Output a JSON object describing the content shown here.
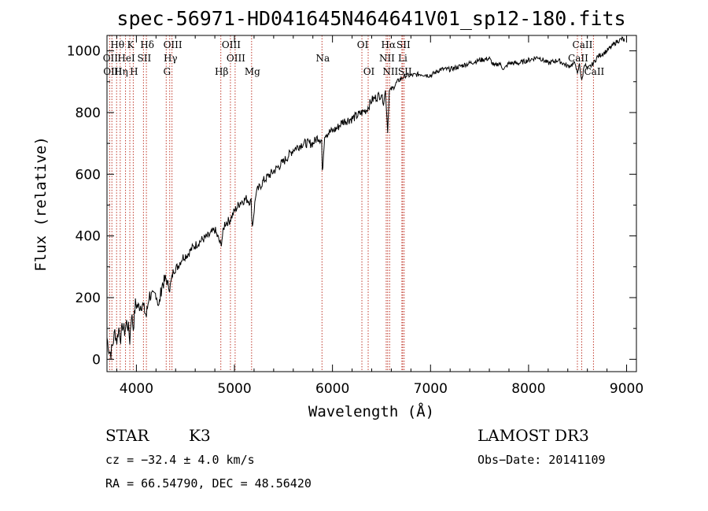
{
  "chart_data": {
    "type": "line",
    "title": "spec-56971-HD041645N464641V01_sp12-180.fits",
    "xlabel": "Wavelength (Å)",
    "ylabel": "Flux (relative)",
    "xlim": [
      3700,
      9100
    ],
    "ylim": [
      -40,
      1050
    ],
    "x_ticks": [
      4000,
      5000,
      6000,
      7000,
      8000,
      9000
    ],
    "y_ticks": [
      0,
      200,
      400,
      600,
      800,
      1000
    ],
    "series": [
      {
        "name": "flux",
        "x": [
          3700,
          3720,
          3740,
          3760,
          3780,
          3800,
          3820,
          3840,
          3860,
          3880,
          3900,
          3920,
          3933,
          3950,
          3968,
          3990,
          4020,
          4060,
          4102,
          4130,
          4170,
          4200,
          4230,
          4260,
          4300,
          4340,
          4380,
          4420,
          4470,
          4520,
          4570,
          4620,
          4680,
          4740,
          4800,
          4861,
          4900,
          4950,
          5000,
          5060,
          5120,
          5170,
          5183,
          5220,
          5300,
          5400,
          5500,
          5600,
          5700,
          5800,
          5850,
          5890,
          5896,
          5920,
          6000,
          6050,
          6100,
          6200,
          6300,
          6350,
          6400,
          6450,
          6500,
          6520,
          6540,
          6563,
          6580,
          6620,
          6660,
          6700,
          6750,
          6800,
          6900,
          7000,
          7100,
          7200,
          7300,
          7400,
          7500,
          7600,
          7650,
          7700,
          7750,
          7800,
          7900,
          8000,
          8100,
          8200,
          8300,
          8400,
          8480,
          8498,
          8520,
          8542,
          8570,
          8600,
          8662,
          8700,
          8800,
          8900,
          8960,
          8980
        ],
        "values": [
          70,
          30,
          20,
          50,
          90,
          60,
          100,
          70,
          110,
          90,
          120,
          100,
          60,
          150,
          100,
          180,
          170,
          180,
          140,
          210,
          200,
          215,
          170,
          240,
          260,
          230,
          290,
          300,
          330,
          340,
          360,
          375,
          390,
          400,
          420,
          370,
          440,
          450,
          480,
          510,
          520,
          510,
          430,
          540,
          580,
          610,
          640,
          680,
          700,
          700,
          720,
          710,
          600,
          730,
          740,
          750,
          770,
          780,
          800,
          810,
          840,
          850,
          860,
          830,
          870,
          740,
          870,
          880,
          900,
          910,
          920,
          920,
          925,
          920,
          940,
          940,
          950,
          960,
          970,
          975,
          950,
          960,
          940,
          960,
          960,
          970,
          980,
          960,
          970,
          950,
          960,
          920,
          960,
          900,
          960,
          940,
          960,
          980,
          1000,
          1030,
          1040,
          1030
        ]
      }
    ],
    "spectral_lines": [
      {
        "label": "Hθ",
        "wavelength": 3798,
        "row": 1
      },
      {
        "label": "OII",
        "wavelength": 3727,
        "row": 2
      },
      {
        "label": "OIII",
        "wavelength": 3750,
        "row": 3
      },
      {
        "label": "K",
        "wavelength": 3933,
        "row": 1
      },
      {
        "label": "Hη",
        "wavelength": 3835,
        "row": 3
      },
      {
        "label": "HeI",
        "wavelength": 3889,
        "row": 2
      },
      {
        "label": "H",
        "wavelength": 3968,
        "row": 3
      },
      {
        "label": "Hδ",
        "wavelength": 4102,
        "row": 1
      },
      {
        "label": "SII",
        "wavelength": 4072,
        "row": 2
      },
      {
        "label": "OIII",
        "wavelength": 4363,
        "row": 1
      },
      {
        "label": "Hγ",
        "wavelength": 4340,
        "row": 2
      },
      {
        "label": "G",
        "wavelength": 4304,
        "row": 3
      },
      {
        "label": "OIII",
        "wavelength": 4959,
        "row": 1
      },
      {
        "label": "OIII",
        "wavelength": 5007,
        "row": 2
      },
      {
        "label": "Hβ",
        "wavelength": 4861,
        "row": 3
      },
      {
        "label": "Mg",
        "wavelength": 5175,
        "row": 3
      },
      {
        "label": "Na",
        "wavelength": 5893,
        "row": 2
      },
      {
        "label": "OI",
        "wavelength": 6300,
        "row": 1
      },
      {
        "label": "OI",
        "wavelength": 6364,
        "row": 3
      },
      {
        "label": "Hα",
        "wavelength": 6563,
        "row": 1
      },
      {
        "label": "SII",
        "wavelength": 6716,
        "row": 1
      },
      {
        "label": "NII",
        "wavelength": 6548,
        "row": 2
      },
      {
        "label": "Li",
        "wavelength": 6708,
        "row": 2
      },
      {
        "label": "NII",
        "wavelength": 6583,
        "row": 3
      },
      {
        "label": "SII",
        "wavelength": 6731,
        "row": 3
      },
      {
        "label": "CaII",
        "wavelength": 8542,
        "row": 1
      },
      {
        "label": "CaII",
        "wavelength": 8498,
        "row": 2
      },
      {
        "label": "CaII",
        "wavelength": 8662,
        "row": 3
      }
    ]
  },
  "info": {
    "object_class": "STAR",
    "subclass": "K3",
    "survey": "LAMOST DR3",
    "redshift": "cz = −32.4 ± 4.0 km/s",
    "obs_date": "Obs−Date: 20141109",
    "coords": "RA =  66.54790, DEC =  48.56420"
  }
}
